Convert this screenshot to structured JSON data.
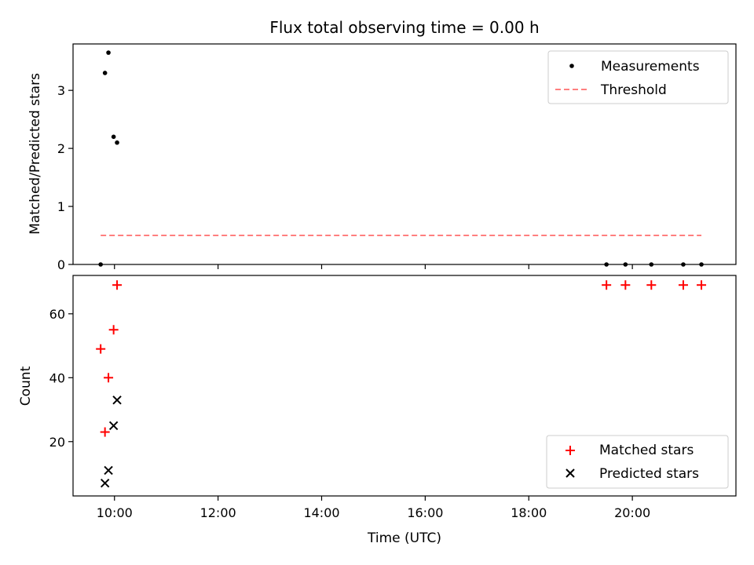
{
  "chart_data": [
    {
      "type": "scatter",
      "title": "Flux total observing time = 0.00 h",
      "xlabel": "",
      "ylabel": "Matched/Predicted stars",
      "xlim": [
        "09:12",
        "22:00"
      ],
      "ylim": [
        0,
        3.8
      ],
      "yticks": [
        0,
        1,
        2,
        3
      ],
      "grid": false,
      "legend": "top-right",
      "series": [
        {
          "name": "Measurements",
          "marker": "dot",
          "color": "#000000",
          "points": [
            {
              "x": "09:44",
              "y": 0
            },
            {
              "x": "09:49",
              "y": 3.3
            },
            {
              "x": "09:53",
              "y": 3.65
            },
            {
              "x": "09:59",
              "y": 2.2
            },
            {
              "x": "10:03",
              "y": 2.1
            },
            {
              "x": "19:30",
              "y": 0
            },
            {
              "x": "19:52",
              "y": 0
            },
            {
              "x": "20:22",
              "y": 0
            },
            {
              "x": "20:59",
              "y": 0
            },
            {
              "x": "21:20",
              "y": 0
            }
          ]
        },
        {
          "name": "Threshold",
          "marker": "dashed-line",
          "color": "#ff7f7f",
          "points": [
            {
              "x": "09:44",
              "y": 0.5
            },
            {
              "x": "21:20",
              "y": 0.5
            }
          ]
        }
      ]
    },
    {
      "type": "scatter",
      "title": "",
      "xlabel": "Time (UTC)",
      "ylabel": "Count",
      "xlim": [
        "09:12",
        "22:00"
      ],
      "xticks": [
        "10:00",
        "12:00",
        "14:00",
        "16:00",
        "18:00",
        "20:00"
      ],
      "ylim": [
        3,
        72
      ],
      "yticks": [
        20,
        40,
        60
      ],
      "grid": false,
      "legend": "bottom-right",
      "series": [
        {
          "name": "Matched stars",
          "marker": "plus",
          "color": "#ff0000",
          "points": [
            {
              "x": "09:44",
              "y": 49
            },
            {
              "x": "09:49",
              "y": 23
            },
            {
              "x": "09:53",
              "y": 40
            },
            {
              "x": "09:59",
              "y": 55
            },
            {
              "x": "10:03",
              "y": 69
            },
            {
              "x": "19:30",
              "y": 69
            },
            {
              "x": "19:52",
              "y": 69
            },
            {
              "x": "20:22",
              "y": 69
            },
            {
              "x": "20:59",
              "y": 69
            },
            {
              "x": "21:20",
              "y": 69
            }
          ]
        },
        {
          "name": "Predicted stars",
          "marker": "x",
          "color": "#000000",
          "points": [
            {
              "x": "09:49",
              "y": 7
            },
            {
              "x": "09:53",
              "y": 11
            },
            {
              "x": "09:59",
              "y": 25
            },
            {
              "x": "10:03",
              "y": 33
            }
          ]
        }
      ]
    }
  ]
}
